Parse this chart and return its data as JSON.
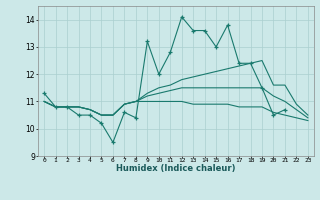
{
  "xlabel": "Humidex (Indice chaleur)",
  "x_values": [
    0,
    1,
    2,
    3,
    4,
    5,
    6,
    7,
    8,
    9,
    10,
    11,
    12,
    13,
    14,
    15,
    16,
    17,
    18,
    19,
    20,
    21,
    22,
    23
  ],
  "series1": [
    11.3,
    10.8,
    10.8,
    10.5,
    10.5,
    10.2,
    9.5,
    10.6,
    10.4,
    13.2,
    12.0,
    12.8,
    14.1,
    13.6,
    13.6,
    13.0,
    13.8,
    12.4,
    12.4,
    11.5,
    10.5,
    10.7,
    null,
    null
  ],
  "series2": [
    11.0,
    10.8,
    10.8,
    10.8,
    10.7,
    10.5,
    10.5,
    10.9,
    11.0,
    11.3,
    11.5,
    11.6,
    11.8,
    11.9,
    12.0,
    12.1,
    12.2,
    12.3,
    12.4,
    12.5,
    11.6,
    11.6,
    10.9,
    10.5
  ],
  "series3": [
    11.0,
    10.8,
    10.8,
    10.8,
    10.7,
    10.5,
    10.5,
    10.9,
    11.0,
    11.2,
    11.3,
    11.4,
    11.5,
    11.5,
    11.5,
    11.5,
    11.5,
    11.5,
    11.5,
    11.5,
    11.2,
    11.0,
    10.7,
    10.4
  ],
  "series4": [
    11.0,
    10.8,
    10.8,
    10.8,
    10.7,
    10.5,
    10.5,
    10.9,
    11.0,
    11.0,
    11.0,
    11.0,
    11.0,
    10.9,
    10.9,
    10.9,
    10.9,
    10.8,
    10.8,
    10.8,
    10.6,
    10.5,
    10.4,
    10.3
  ],
  "line_color": "#1a7a6e",
  "bg_color": "#cce8e8",
  "grid_color": "#aacfcf",
  "ylim": [
    9,
    14.5
  ],
  "yticks": [
    9,
    10,
    11,
    12,
    13,
    14
  ],
  "xlim": [
    -0.5,
    23.5
  ],
  "xticks": [
    0,
    1,
    2,
    3,
    4,
    5,
    6,
    7,
    8,
    9,
    10,
    11,
    12,
    13,
    14,
    15,
    16,
    17,
    18,
    19,
    20,
    21,
    22,
    23
  ]
}
